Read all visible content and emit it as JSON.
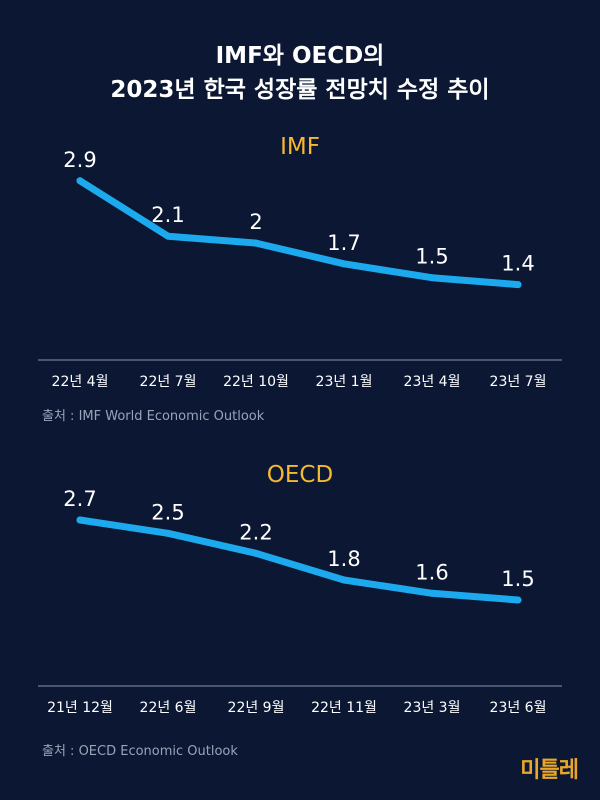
{
  "title": {
    "line1": "IMF와 OECD의",
    "line2": "2023년 한국 성장률 전망치 수정 추이"
  },
  "colors": {
    "background": "#0b1733",
    "line": "#1ca9ee",
    "accent": "#f5b82e",
    "axis": "#8a93a8"
  },
  "chart_data": [
    {
      "type": "line",
      "title": "IMF",
      "categories": [
        "22년 4월",
        "22년 7월",
        "22년 10월",
        "23년 1월",
        "23년 4월",
        "23년 7월"
      ],
      "values": [
        2.9,
        2.1,
        2,
        1.7,
        1.5,
        1.4
      ],
      "value_labels": [
        "2.9",
        "2.1",
        "2",
        "1.7",
        "1.5",
        "1.4"
      ],
      "ylim": [
        0.6,
        3.2
      ],
      "grid": false,
      "source": "출처 : IMF World Economic Outlook"
    },
    {
      "type": "line",
      "title": "OECD",
      "categories": [
        "21년 12월",
        "22년 6월",
        "22년 9월",
        "22년 11월",
        "23년 3월",
        "23년 6월"
      ],
      "values": [
        2.7,
        2.5,
        2.2,
        1.8,
        1.6,
        1.5
      ],
      "value_labels": [
        "2.7",
        "2.5",
        "2.2",
        "1.8",
        "1.6",
        "1.5"
      ],
      "ylim": [
        0.6,
        3.0
      ],
      "grid": false,
      "source": "출처 : OECD Economic Outlook"
    }
  ],
  "logo": {
    "text": "미틀레"
  }
}
